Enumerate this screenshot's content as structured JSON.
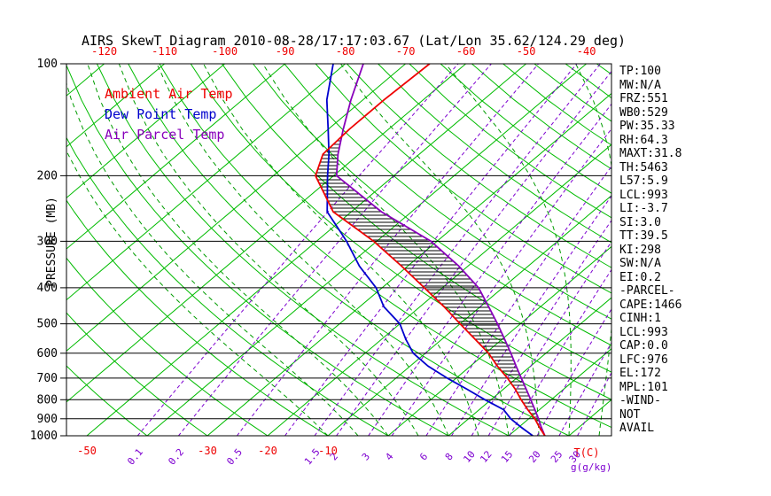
{
  "title": "AIRS SkewT Diagram 2010-08-28/17:17:03.67 (Lat/Lon 35.62/124.29 deg)",
  "colors": {
    "isotherm_green": "#00bb00",
    "moist_adiabat_green": "#009c00",
    "mixing_ratio_purple": "#7d00d0",
    "ambient_red": "#ee0000",
    "dewpoint_blue": "#0000cd",
    "parcel_purple": "#8800bb",
    "axis_black": "#000000",
    "hatch_black": "#000000"
  },
  "legend": [
    {
      "label": "Ambient Air Temp",
      "color": "#ee0000"
    },
    {
      "label": "Dew Point Temp",
      "color": "#0000cd"
    },
    {
      "label": "Air Parcel Temp",
      "color": "#8800bb"
    }
  ],
  "pressure_axis": {
    "label": "PRESSURE (MB)",
    "ticks": [
      100,
      200,
      300,
      400,
      500,
      600,
      700,
      800,
      900,
      1000
    ]
  },
  "top_temp_ticks": [
    -120,
    -110,
    -100,
    -90,
    -80,
    -70,
    -60,
    -50,
    -40
  ],
  "bottom_temp_ticks": [
    -50,
    -30,
    -20,
    -10
  ],
  "bottom_temp_unit": "T(C)",
  "mixing_ratio_labels": [
    0.1,
    0.2,
    0.5,
    1.5,
    2,
    3,
    4,
    6,
    8,
    10,
    12,
    15,
    20,
    25,
    30
  ],
  "mixing_ratio_unit": "g(g/kg)",
  "stats_panel": [
    "TP:100",
    "MW:N/A",
    "FRZ:551",
    "WB0:529",
    "PW:35.33",
    "RH:64.3",
    "MAXT:31.8",
    "TH:5463",
    "L57:5.9",
    "LCL:993",
    "LI:-3.7",
    "SI:3.0",
    "TT:39.5",
    "KI:298",
    "SW:N/A",
    "EI:0.2",
    "-PARCEL-",
    "CAPE:1466",
    "CINH:1",
    "LCL:993",
    "CAP:0.0",
    "LFC:976",
    "EL:172",
    "MPL:101",
    "-WIND-",
    "NOT",
    "AVAIL"
  ],
  "chart_data": {
    "type": "line",
    "skew_t": true,
    "title": "AIRS SkewT Diagram 2010-08-28/17:17:03.67 (Lat/Lon 35.62/124.29 deg)",
    "xlabel": "T(C)",
    "ylabel": "PRESSURE (MB)",
    "pressure_range": [
      100,
      1000
    ],
    "pressure_log_scale": true,
    "isotherm_range": [
      -130,
      40
    ],
    "isotherm_step": 10,
    "dry_adiabat_theta_range": [
      -40,
      190
    ],
    "dry_adiabat_step": 10,
    "moist_adiabats_thetaw": [
      -10,
      -5,
      0,
      5,
      10,
      15,
      20,
      25,
      30,
      35
    ],
    "mixing_ratio_lines": [
      0.1,
      0.2,
      0.5,
      1,
      1.5,
      2,
      3,
      4,
      6,
      8,
      10,
      12,
      15,
      20,
      25,
      30
    ],
    "series": [
      {
        "name": "Ambient Air Temp",
        "color": "#ee0000",
        "points": [
          [
            100,
            -66
          ],
          [
            125,
            -66.5
          ],
          [
            150,
            -66.5
          ],
          [
            175,
            -66
          ],
          [
            200,
            -63
          ],
          [
            250,
            -53
          ],
          [
            300,
            -40.5
          ],
          [
            350,
            -31
          ],
          [
            400,
            -23
          ],
          [
            450,
            -16
          ],
          [
            500,
            -10
          ],
          [
            550,
            -4.5
          ],
          [
            600,
            0.5
          ],
          [
            650,
            4.5
          ],
          [
            700,
            8.5
          ],
          [
            750,
            12
          ],
          [
            800,
            15
          ],
          [
            850,
            18
          ],
          [
            900,
            21
          ],
          [
            950,
            23.5
          ],
          [
            1000,
            26
          ]
        ]
      },
      {
        "name": "Dew Point Temp",
        "color": "#0000cd",
        "points": [
          [
            100,
            -82
          ],
          [
            125,
            -76
          ],
          [
            150,
            -70
          ],
          [
            175,
            -65
          ],
          [
            200,
            -61
          ],
          [
            250,
            -54
          ],
          [
            300,
            -45
          ],
          [
            350,
            -38
          ],
          [
            400,
            -31
          ],
          [
            450,
            -26
          ],
          [
            500,
            -20
          ],
          [
            550,
            -16
          ],
          [
            600,
            -12
          ],
          [
            650,
            -7
          ],
          [
            700,
            -1.5
          ],
          [
            750,
            4
          ],
          [
            800,
            9
          ],
          [
            850,
            14
          ],
          [
            900,
            17
          ],
          [
            950,
            20.5
          ],
          [
            1000,
            24
          ]
        ]
      },
      {
        "name": "Air Parcel Temp",
        "color": "#8800bb",
        "points": [
          [
            100,
            -77
          ],
          [
            125,
            -72
          ],
          [
            150,
            -67.5
          ],
          [
            175,
            -63.5
          ],
          [
            200,
            -59.5
          ],
          [
            250,
            -45
          ],
          [
            300,
            -31
          ],
          [
            350,
            -21.5
          ],
          [
            400,
            -14
          ],
          [
            450,
            -8.6
          ],
          [
            500,
            -3.8
          ],
          [
            550,
            0.4
          ],
          [
            600,
            4.2
          ],
          [
            650,
            7.6
          ],
          [
            700,
            10.8
          ],
          [
            750,
            13.8
          ],
          [
            800,
            16.6
          ],
          [
            850,
            19.2
          ],
          [
            900,
            21.6
          ],
          [
            950,
            23.8
          ],
          [
            1000,
            26
          ]
        ]
      }
    ],
    "cape_hatch": {
      "between": [
        "Air Parcel Temp",
        "Ambient Air Temp"
      ],
      "pressure_from": 976,
      "pressure_to": 160
    }
  }
}
